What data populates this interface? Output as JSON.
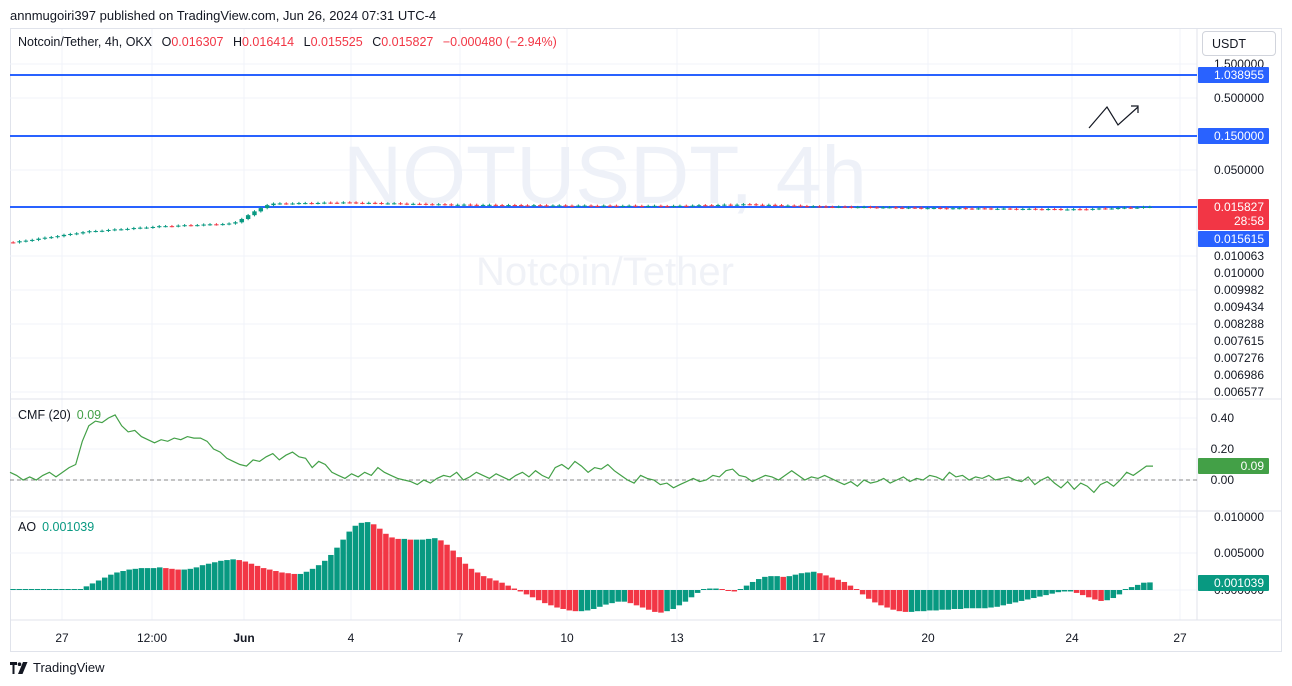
{
  "publisher": "annmugoiri397 published on TradingView.com, Jun 26, 2024 07:31 UTC-4",
  "symbol": {
    "name": "Notcoin/Tether, 4h, OKX",
    "o_label": "O",
    "o": "0.016307",
    "h_label": "H",
    "h": "0.016414",
    "l_label": "L",
    "l": "0.015525",
    "c_label": "C",
    "c": "0.015827",
    "change": "−0.000480 (−2.94%)"
  },
  "currency_button": "USDT",
  "watermark": {
    "ticker": "NOTUSDT, 4h",
    "name": "Notcoin/Tether"
  },
  "footer_brand": "TradingView",
  "colors": {
    "up": "#089981",
    "down": "#f23645",
    "hline": "#2962ff",
    "cmf": "#43a047"
  },
  "icons": [
    "tradingview-logo-icon",
    "trend-arrow-icon"
  ],
  "chart_data": [
    {
      "type": "candlestick",
      "title": "Notcoin/Tether, 4h, OKX",
      "price_axis_labels": [
        "1.500000",
        "1.038955",
        "0.500000",
        "0.150000",
        "0.050000",
        "0.015827",
        "0.015615",
        "0.010063",
        "0.010000",
        "0.009982",
        "0.009434",
        "0.008288",
        "0.007615",
        "0.007276",
        "0.006986",
        "0.006577"
      ],
      "horizontal_lines": [
        {
          "value": 1.038955,
          "label": "1.038955"
        },
        {
          "value": 0.15,
          "label": "0.150000"
        },
        {
          "value": 0.015827,
          "label": "0.015827"
        }
      ],
      "last_price": {
        "value": "0.015827",
        "countdown": "28:58"
      },
      "previous_close": "0.015615",
      "x_tick_labels": [
        "27",
        "12:00",
        "Jun",
        "4",
        "7",
        "10",
        "13",
        "17",
        "20",
        "24",
        "27"
      ],
      "close_trend": [
        {
          "x": "May 26",
          "close": 0.0066
        },
        {
          "x": "May 27",
          "close": 0.0075
        },
        {
          "x": "May 28",
          "close": 0.0086
        },
        {
          "x": "May 30",
          "close": 0.0098
        },
        {
          "x": "Jun 1",
          "close": 0.0105
        },
        {
          "x": "Jun 2",
          "close": 0.0175
        },
        {
          "x": "Jun 4",
          "close": 0.0182
        },
        {
          "x": "Jun 7",
          "close": 0.017
        },
        {
          "x": "Jun 10",
          "close": 0.0165
        },
        {
          "x": "Jun 13",
          "close": 0.0163
        },
        {
          "x": "Jun 15",
          "close": 0.0172
        },
        {
          "x": "Jun 17",
          "close": 0.016
        },
        {
          "x": "Jun 20",
          "close": 0.0154
        },
        {
          "x": "Jun 24",
          "close": 0.0149
        },
        {
          "x": "Jun 26",
          "close": 0.015827
        }
      ]
    },
    {
      "type": "line",
      "title": "CMF (20)",
      "value_label": "0.09",
      "y_tick_labels": [
        "0.40",
        "0.20",
        "0.00"
      ],
      "ylim": [
        -0.1,
        0.45
      ],
      "series": [
        {
          "values": [
            0.05,
            0.03,
            0.0,
            0.02,
            0.0,
            0.03,
            0.05,
            0.02,
            0.05,
            0.08,
            0.1,
            0.25,
            0.35,
            0.38,
            0.37,
            0.4,
            0.42,
            0.35,
            0.31,
            0.32,
            0.28,
            0.26,
            0.24,
            0.26,
            0.25,
            0.27,
            0.26,
            0.28,
            0.27,
            0.27,
            0.25,
            0.2,
            0.18,
            0.14,
            0.12,
            0.1,
            0.09,
            0.13,
            0.12,
            0.15,
            0.17,
            0.13,
            0.16,
            0.18,
            0.15,
            0.14,
            0.08,
            0.12,
            0.1,
            0.05,
            0.03,
            0.01,
            0.04,
            0.02,
            0.05,
            0.03,
            0.08,
            0.05,
            0.03,
            0.01,
            0.0,
            -0.01,
            -0.03,
            0.0,
            -0.02,
            0.01,
            0.03,
            0.02,
            0.05,
            0.0,
            0.02,
            0.05,
            0.03,
            0.01,
            0.04,
            0.02,
            0.0,
            0.03,
            0.05,
            0.02,
            0.06,
            0.03,
            0.01,
            0.08,
            0.1,
            0.07,
            0.12,
            0.09,
            0.05,
            0.08,
            0.07,
            0.1,
            0.06,
            0.03,
            0.0,
            -0.02,
            0.03,
            0.01,
            0.0,
            -0.03,
            -0.02,
            -0.05,
            -0.03,
            -0.01,
            0.01,
            -0.01,
            0.0,
            0.03,
            0.02,
            0.06,
            0.07,
            0.03,
            0.02,
            -0.01,
            0.01,
            0.03,
            0.02,
            0.0,
            0.03,
            0.06,
            0.03,
            0.0,
            0.02,
            0.01,
            0.03,
            0.01,
            -0.01,
            -0.03,
            -0.01,
            -0.04,
            0.0,
            -0.02,
            -0.01,
            0.01,
            -0.02,
            0.0,
            0.02,
            -0.01,
            0.01,
            0.0,
            0.03,
            0.02,
            0.0,
            0.05,
            0.02,
            0.03,
            0.0,
            0.02,
            0.01,
            0.03,
            0.0,
            0.01,
            0.02,
            0.0,
            -0.01,
            0.02,
            -0.03,
            0.0,
            0.02,
            -0.02,
            -0.05,
            -0.01,
            -0.06,
            -0.02,
            -0.04,
            -0.08,
            -0.03,
            -0.01,
            -0.04,
            0.0,
            0.05,
            0.03,
            0.06,
            0.09,
            0.09
          ]
        }
      ],
      "zero_line": true
    },
    {
      "type": "bar",
      "title": "AO",
      "value_label": "0.001039",
      "y_tick_labels": [
        "0.010000",
        "0.005000",
        "0.000000"
      ],
      "ylim": [
        -0.0035,
        0.0105
      ],
      "series": [
        {
          "values": [
            0.0,
            0.0,
            0.0,
            0.0,
            0.0,
            0.0,
            0.0,
            0.0,
            0.0,
            0.0,
            0.0,
            0.0,
            0.0005,
            0.0009,
            0.0013,
            0.0017,
            0.0021,
            0.0024,
            0.0026,
            0.0028,
            0.0029,
            0.003,
            0.003,
            0.003,
            0.0031,
            0.003,
            0.0029,
            0.0028,
            0.0028,
            0.0029,
            0.0031,
            0.0034,
            0.0036,
            0.0038,
            0.004,
            0.0041,
            0.0042,
            0.0041,
            0.0039,
            0.0036,
            0.0033,
            0.003,
            0.0028,
            0.0026,
            0.0024,
            0.0023,
            0.0022,
            0.0022,
            0.0025,
            0.0029,
            0.0034,
            0.004,
            0.0048,
            0.0058,
            0.0069,
            0.008,
            0.0088,
            0.0092,
            0.0093,
            0.009,
            0.0084,
            0.0077,
            0.0072,
            0.007,
            0.007,
            0.0069,
            0.0069,
            0.0069,
            0.007,
            0.0071,
            0.0068,
            0.0062,
            0.0054,
            0.0045,
            0.0036,
            0.0029,
            0.0024,
            0.0019,
            0.0016,
            0.0013,
            0.001,
            0.0006,
            0.0002,
            -0.0002,
            -0.0006,
            -0.001,
            -0.0014,
            -0.0018,
            -0.0021,
            -0.0024,
            -0.0026,
            -0.0028,
            -0.0029,
            -0.0029,
            -0.0028,
            -0.0026,
            -0.0023,
            -0.002,
            -0.0018,
            -0.0016,
            -0.0016,
            -0.0018,
            -0.0021,
            -0.0024,
            -0.0027,
            -0.003,
            -0.0031,
            -0.0029,
            -0.0026,
            -0.0021,
            -0.0016,
            -0.001,
            -0.0004,
            0.0,
            0.0002,
            0.0002,
            0.0001,
            -0.0001,
            -0.0002,
            0.0001,
            0.0006,
            0.0011,
            0.0015,
            0.0018,
            0.0019,
            0.0019,
            0.0018,
            0.0019,
            0.0021,
            0.0023,
            0.0024,
            0.0025,
            0.0023,
            0.002,
            0.0017,
            0.0014,
            0.0011,
            0.0006,
            0.0,
            -0.0006,
            -0.0012,
            -0.0017,
            -0.0021,
            -0.0024,
            -0.0027,
            -0.0029,
            -0.003,
            -0.003,
            -0.0029,
            -0.0029,
            -0.0028,
            -0.0028,
            -0.0027,
            -0.0027,
            -0.0026,
            -0.0026,
            -0.0025,
            -0.0025,
            -0.0025,
            -0.0025,
            -0.0024,
            -0.0023,
            -0.0021,
            -0.0019,
            -0.0017,
            -0.0015,
            -0.0013,
            -0.0011,
            -0.0009,
            -0.0007,
            -0.0005,
            -0.0003,
            -0.0002,
            -0.0002,
            -0.0004,
            -0.0007,
            -0.001,
            -0.0013,
            -0.0015,
            -0.0014,
            -0.0011,
            -0.0006,
            0.0,
            0.0004,
            0.0007,
            0.001,
            0.001039
          ]
        }
      ]
    }
  ]
}
